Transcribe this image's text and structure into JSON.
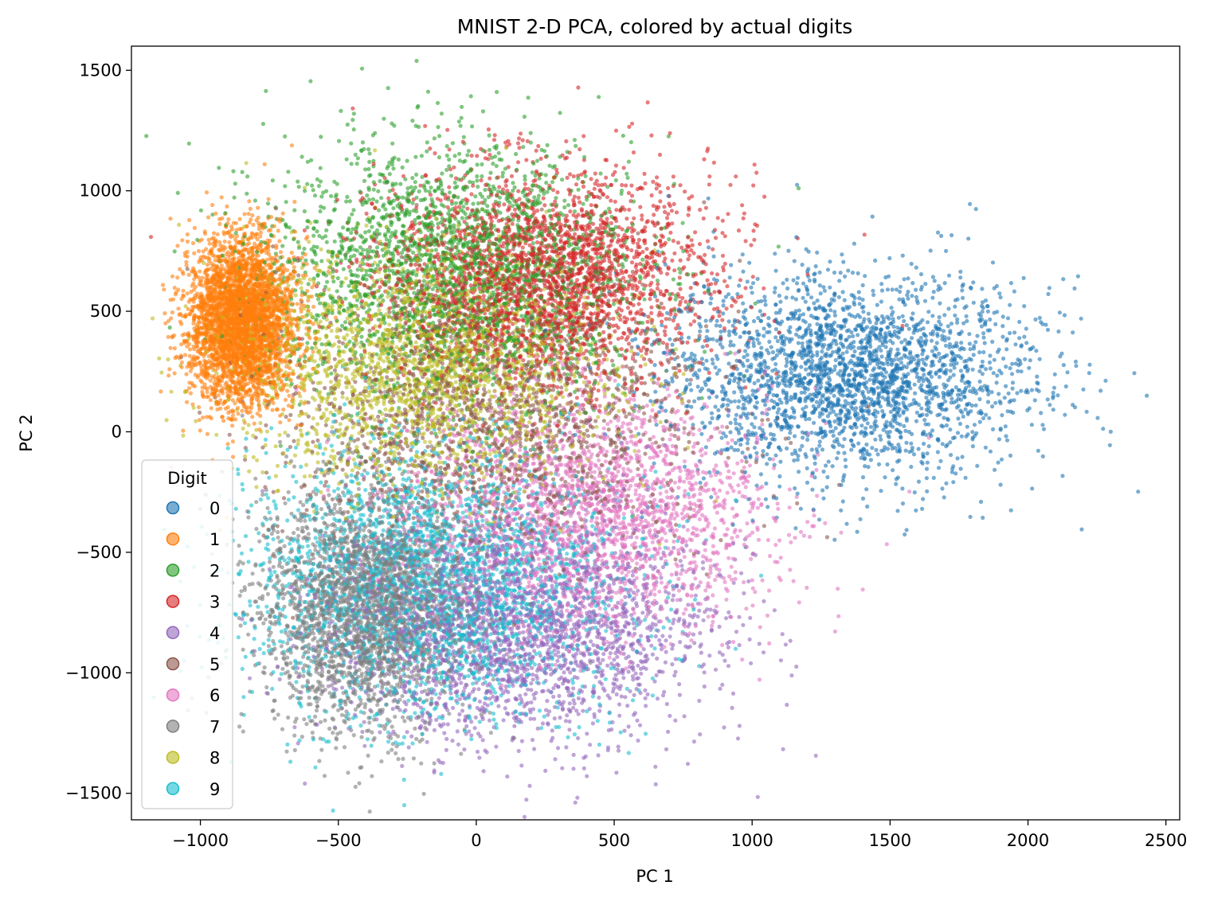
{
  "chart_data": {
    "type": "scatter",
    "title": "MNIST 2-D PCA, colored by actual digits",
    "xlabel": "PC 1",
    "ylabel": "PC 2",
    "xlim": [
      -1250,
      2550
    ],
    "ylim": [
      -1610,
      1600
    ],
    "xticks": [
      -1000,
      -500,
      0,
      500,
      1000,
      1500,
      2000,
      2500
    ],
    "yticks": [
      -1500,
      -1000,
      -500,
      0,
      500,
      1000,
      1500
    ],
    "xtick_labels": [
      "−1000",
      "−500",
      "0",
      "500",
      "1000",
      "1500",
      "2000",
      "2500"
    ],
    "ytick_labels": [
      "−1500",
      "−1000",
      "−500",
      "0",
      "500",
      "1000",
      "1500"
    ],
    "grid": false,
    "legend": {
      "title": "Digit",
      "placement": "lower-left"
    },
    "marker_alpha": 0.6,
    "series": [
      {
        "name": "0",
        "color": "#1f77b4",
        "center": [
          1350,
          230
        ],
        "spread": [
          330,
          210
        ],
        "count": 2600
      },
      {
        "name": "1",
        "color": "#ff7f0e",
        "center": [
          -850,
          460
        ],
        "spread": [
          95,
          170
        ],
        "count": 3600
      },
      {
        "name": "2",
        "color": "#2ca02c",
        "center": [
          -80,
          680
        ],
        "spread": [
          330,
          260
        ],
        "count": 2500
      },
      {
        "name": "3",
        "color": "#d62728",
        "center": [
          260,
          640
        ],
        "spread": [
          300,
          220
        ],
        "count": 2600
      },
      {
        "name": "4",
        "color": "#9467bd",
        "center": [
          150,
          -820
        ],
        "spread": [
          340,
          230
        ],
        "count": 2500
      },
      {
        "name": "5",
        "color": "#8c564b",
        "center": [
          60,
          80
        ],
        "spread": [
          380,
          300
        ],
        "count": 1900
      },
      {
        "name": "6",
        "color": "#e377c2",
        "center": [
          430,
          -330
        ],
        "spread": [
          320,
          240
        ],
        "count": 2200
      },
      {
        "name": "7",
        "color": "#7f7f7f",
        "center": [
          -400,
          -730
        ],
        "spread": [
          190,
          250
        ],
        "count": 2600
      },
      {
        "name": "8",
        "color": "#bcbd22",
        "center": [
          -180,
          260
        ],
        "spread": [
          330,
          240
        ],
        "count": 2200
      },
      {
        "name": "9",
        "color": "#17becf",
        "center": [
          -150,
          -620
        ],
        "spread": [
          330,
          280
        ],
        "count": 2700
      }
    ]
  }
}
